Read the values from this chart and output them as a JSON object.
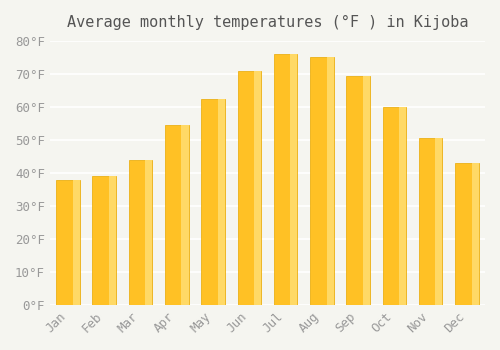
{
  "title": "Average monthly temperatures (°F ) in Kijoba",
  "months": [
    "Jan",
    "Feb",
    "Mar",
    "Apr",
    "May",
    "Jun",
    "Jul",
    "Aug",
    "Sep",
    "Oct",
    "Nov",
    "Dec"
  ],
  "values": [
    38,
    39,
    44,
    54.5,
    62.5,
    71,
    76,
    75,
    69.5,
    60,
    50.5,
    43
  ],
  "bar_color_face": "#FFC125",
  "bar_color_edge": "#FFD700",
  "bar_gradient_top": "#FFA500",
  "ylim": [
    0,
    80
  ],
  "yticks": [
    0,
    10,
    20,
    30,
    40,
    50,
    60,
    70,
    80
  ],
  "ytick_labels": [
    "0°F",
    "10°F",
    "20°F",
    "30°F",
    "40°F",
    "50°F",
    "60°F",
    "70°F",
    "80°F"
  ],
  "background_color": "#f5f5f0",
  "grid_color": "#ffffff",
  "title_fontsize": 11,
  "tick_fontsize": 9,
  "font_family": "monospace"
}
